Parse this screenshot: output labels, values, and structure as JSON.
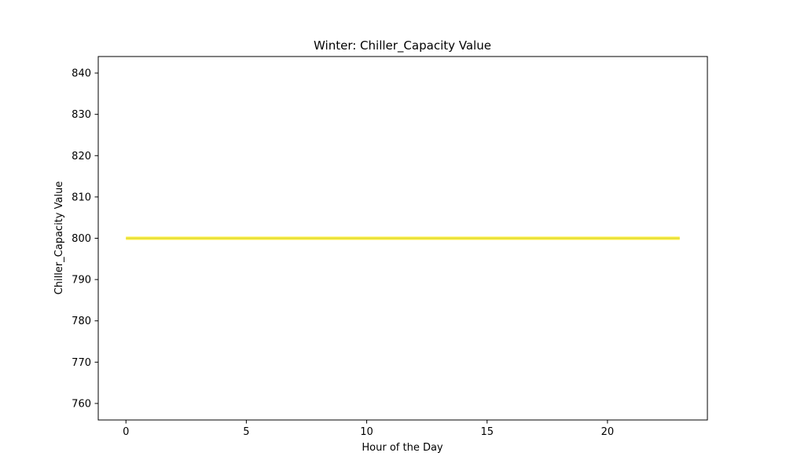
{
  "chart_data": {
    "type": "line",
    "title": "Winter: Chiller_Capacity Value",
    "xlabel": "Hour of the Day",
    "ylabel": "Chiller_Capacity Value",
    "xlim": [
      -1.15,
      24.15
    ],
    "ylim": [
      756,
      844
    ],
    "xticks": [
      0,
      5,
      10,
      15,
      20
    ],
    "yticks": [
      760,
      770,
      780,
      790,
      800,
      810,
      820,
      830,
      840
    ],
    "grid": false,
    "series": [
      {
        "color": "#ffee33",
        "x": [
          0,
          1,
          2,
          3,
          4,
          5,
          6,
          7,
          8,
          9,
          10,
          11,
          12,
          13,
          14,
          15,
          16,
          17,
          18,
          19,
          20,
          21,
          22,
          23
        ],
        "values": [
          800,
          800,
          800,
          800,
          800,
          800,
          800,
          800,
          800,
          800,
          800,
          800,
          800,
          800,
          800,
          800,
          800,
          800,
          800,
          800,
          800,
          800,
          800,
          800
        ]
      },
      {
        "color": "#d8d84a",
        "x": [
          0,
          1,
          2,
          3,
          4,
          5,
          6,
          7,
          8,
          9,
          10,
          11,
          12,
          13,
          14,
          15,
          16,
          17,
          18,
          19,
          20,
          21,
          22,
          23
        ],
        "values": [
          800,
          800,
          800,
          800,
          800,
          800,
          800,
          800,
          800,
          800,
          800,
          800,
          800,
          800,
          800,
          800,
          800,
          800,
          800,
          800,
          800,
          800,
          800,
          800
        ]
      }
    ]
  }
}
